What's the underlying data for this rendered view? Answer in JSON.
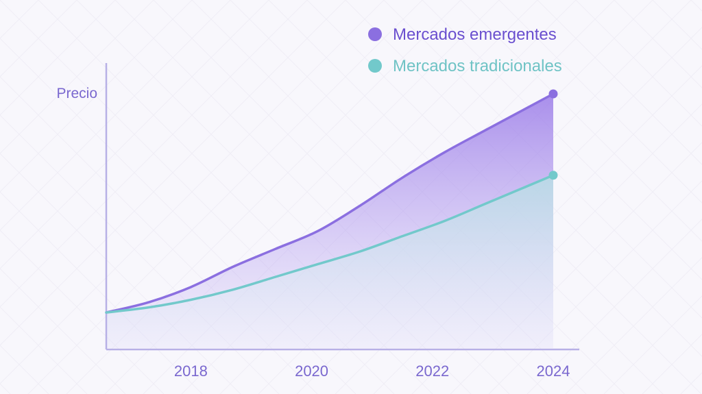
{
  "chart_data": {
    "type": "area",
    "ylabel": "Precio",
    "xlabel": "",
    "title": "",
    "x_ticks": [
      "2018",
      "2020",
      "2022",
      "2024"
    ],
    "x_range": [
      2016.6,
      2024
    ],
    "y_range": [
      0,
      100
    ],
    "legend_position": "top-right",
    "grid": false,
    "series": [
      {
        "name": "Mercados emergentes",
        "color": "#8b6fe0",
        "x": [
          2016.6,
          2017.3,
          2018.0,
          2018.7,
          2019.4,
          2020.1,
          2020.8,
          2021.5,
          2022.2,
          2022.9,
          2024.0
        ],
        "y": [
          14,
          18,
          24,
          32,
          39,
          46,
          56,
          67,
          77,
          86,
          100
        ]
      },
      {
        "name": "Mercados tradicionales",
        "color": "#72c9cb",
        "x": [
          2016.6,
          2017.3,
          2018.0,
          2018.7,
          2019.4,
          2020.1,
          2020.8,
          2021.5,
          2022.2,
          2022.9,
          2024.0
        ],
        "y": [
          14,
          16,
          19,
          23,
          28,
          33,
          38,
          44,
          50,
          57,
          68
        ]
      }
    ]
  }
}
